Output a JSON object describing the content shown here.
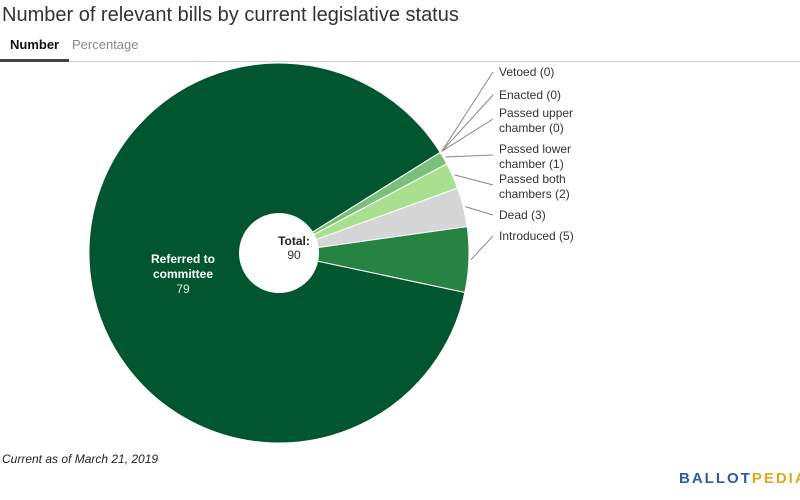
{
  "title": "Number of relevant bills by current legislative status",
  "tabs": [
    {
      "label": "Number",
      "active": true
    },
    {
      "label": "Percentage",
      "active": false
    }
  ],
  "footnote": "Current as of March 21, 2019",
  "logo": {
    "ballot": "BALLOT",
    "pedia": "PEDIA",
    "colors": {
      "ballot": "#2a5caa",
      "pedia": "#e0a817"
    }
  },
  "chart_data": {
    "type": "pie",
    "variant": "donut",
    "center_label": "Total:",
    "center_value": "90",
    "total": 90,
    "categories": [
      "Introduced",
      "Dead",
      "Passed both chambers",
      "Passed lower chamber",
      "Passed upper chamber",
      "Enacted",
      "Vetoed",
      "Referred to committee"
    ],
    "values": [
      5,
      3,
      2,
      1,
      0,
      0,
      0,
      79
    ],
    "colors": [
      "#268342",
      "#d6d6d6",
      "#a9e08f",
      "#7cbf7c",
      "#a9e08f",
      "#7cbf7c",
      "#268342",
      "#02562f"
    ],
    "labels": [
      [
        "Introduced (5)"
      ],
      [
        "Dead (3)"
      ],
      [
        "Passed both",
        "chambers (2)"
      ],
      [
        "Passed lower",
        "chamber (1)"
      ],
      [
        "Passed upper",
        "chamber (0)"
      ],
      [
        "Enacted (0)"
      ],
      [
        "Vetoed (0)"
      ],
      [
        "Referred to",
        "committee"
      ]
    ],
    "inside_label": {
      "lines": [
        "Referred to",
        "committee"
      ],
      "value": "79"
    }
  }
}
